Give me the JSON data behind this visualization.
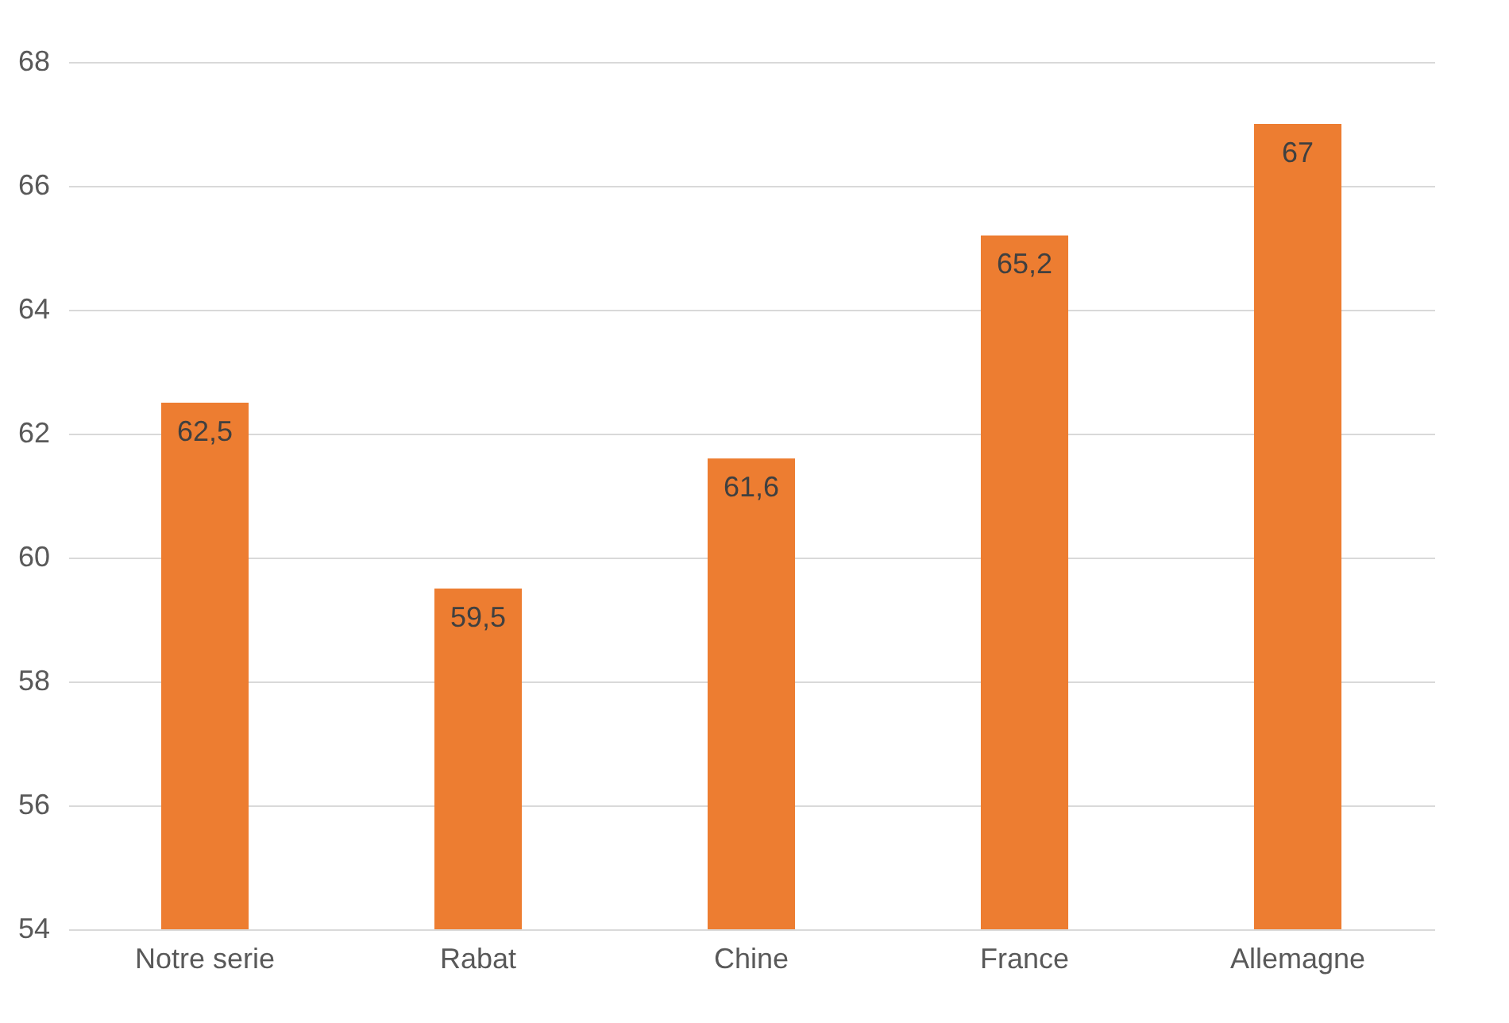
{
  "chart_data": {
    "type": "bar",
    "categories": [
      "Notre serie",
      "Rabat",
      "Chine",
      "France",
      "Allemagne"
    ],
    "values": [
      62.5,
      59.5,
      61.6,
      65.2,
      67
    ],
    "value_labels": [
      "62,5",
      "59,5",
      "61,6",
      "65,2",
      "67"
    ],
    "color": "#ed7d31",
    "ylim": [
      54,
      68
    ],
    "yticks": [
      54,
      56,
      58,
      60,
      62,
      64,
      66,
      68
    ],
    "grid": "y"
  }
}
